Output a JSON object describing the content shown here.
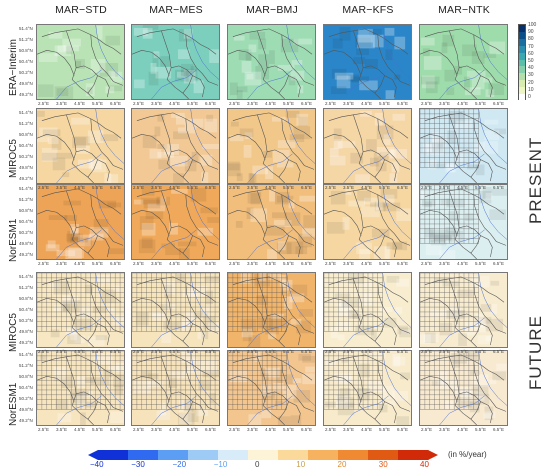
{
  "columns": [
    "MAR−STD",
    "MAR−MES",
    "MAR−BMJ",
    "MAR−KFS",
    "MAR−NTK"
  ],
  "rows": [
    {
      "label": "ERA−Interim",
      "scheme": "sequential"
    },
    {
      "label": "MIROC5",
      "scheme": "diverging"
    },
    {
      "label": "NorESM1",
      "scheme": "diverging"
    },
    {
      "label": "MIROC5",
      "scheme": "diverging"
    },
    {
      "label": "NorESM1",
      "scheme": "diverging"
    }
  ],
  "side_labels": {
    "present": "PRESENT",
    "future": "FUTURE"
  },
  "lat_ticks": [
    "51.4°N",
    "51.2°N",
    "50.8°N",
    "50.4°N",
    "50.2°N",
    "49.8°N",
    "49.2°N"
  ],
  "lon_ticks": [
    "2.5°E",
    "3.5°E",
    "4.5°E",
    "5.5°E",
    "6.5°E"
  ],
  "seq_colorbar": {
    "labels": [
      "100",
      "90",
      "80",
      "70",
      "60",
      "50",
      "40",
      "30",
      "20",
      "10",
      "0"
    ],
    "colors": [
      "#08306b",
      "#0b4f8a",
      "#1b6fa0",
      "#2a8fae",
      "#3aa9b0",
      "#5bbfae",
      "#86d0ad",
      "#b3dfac",
      "#d8ecb0",
      "#eef6c6",
      "#ffffff"
    ]
  },
  "div_colorbar": {
    "labels": [
      "−40",
      "−30",
      "−20",
      "−10",
      "0",
      "10",
      "20",
      "30",
      "40"
    ],
    "colors": [
      "#1030d8",
      "#2f6af0",
      "#5d9ef5",
      "#9ecbf5",
      "#d7ecf8",
      "#fdf3d6",
      "#fbd99a",
      "#f6b25e",
      "#ef8a33",
      "#e05a14",
      "#d02a08"
    ],
    "units": "(in %/year)"
  },
  "panels": [
    [
      "#b9e3b5",
      "#7ccfbd",
      "#9edcb4",
      "#2a86c8",
      "#9fdcab"
    ],
    [
      "#f6d7a2",
      "#f2c994",
      "#f1c78a",
      "#f5d6a5",
      "#cfe8f2"
    ],
    [
      "#eea456",
      "#f0a95a",
      "#f2be7c",
      "#f6d7a2",
      "#dceff0"
    ],
    [
      "#f7e7c2",
      "#f6e4bd",
      "#f0b46b",
      "#f8edcf",
      "#f8ecd0"
    ],
    [
      "#f7e5c0",
      "#f6e2bb",
      "#f3c690",
      "#f8ebcc",
      "#f8ead0"
    ]
  ]
}
